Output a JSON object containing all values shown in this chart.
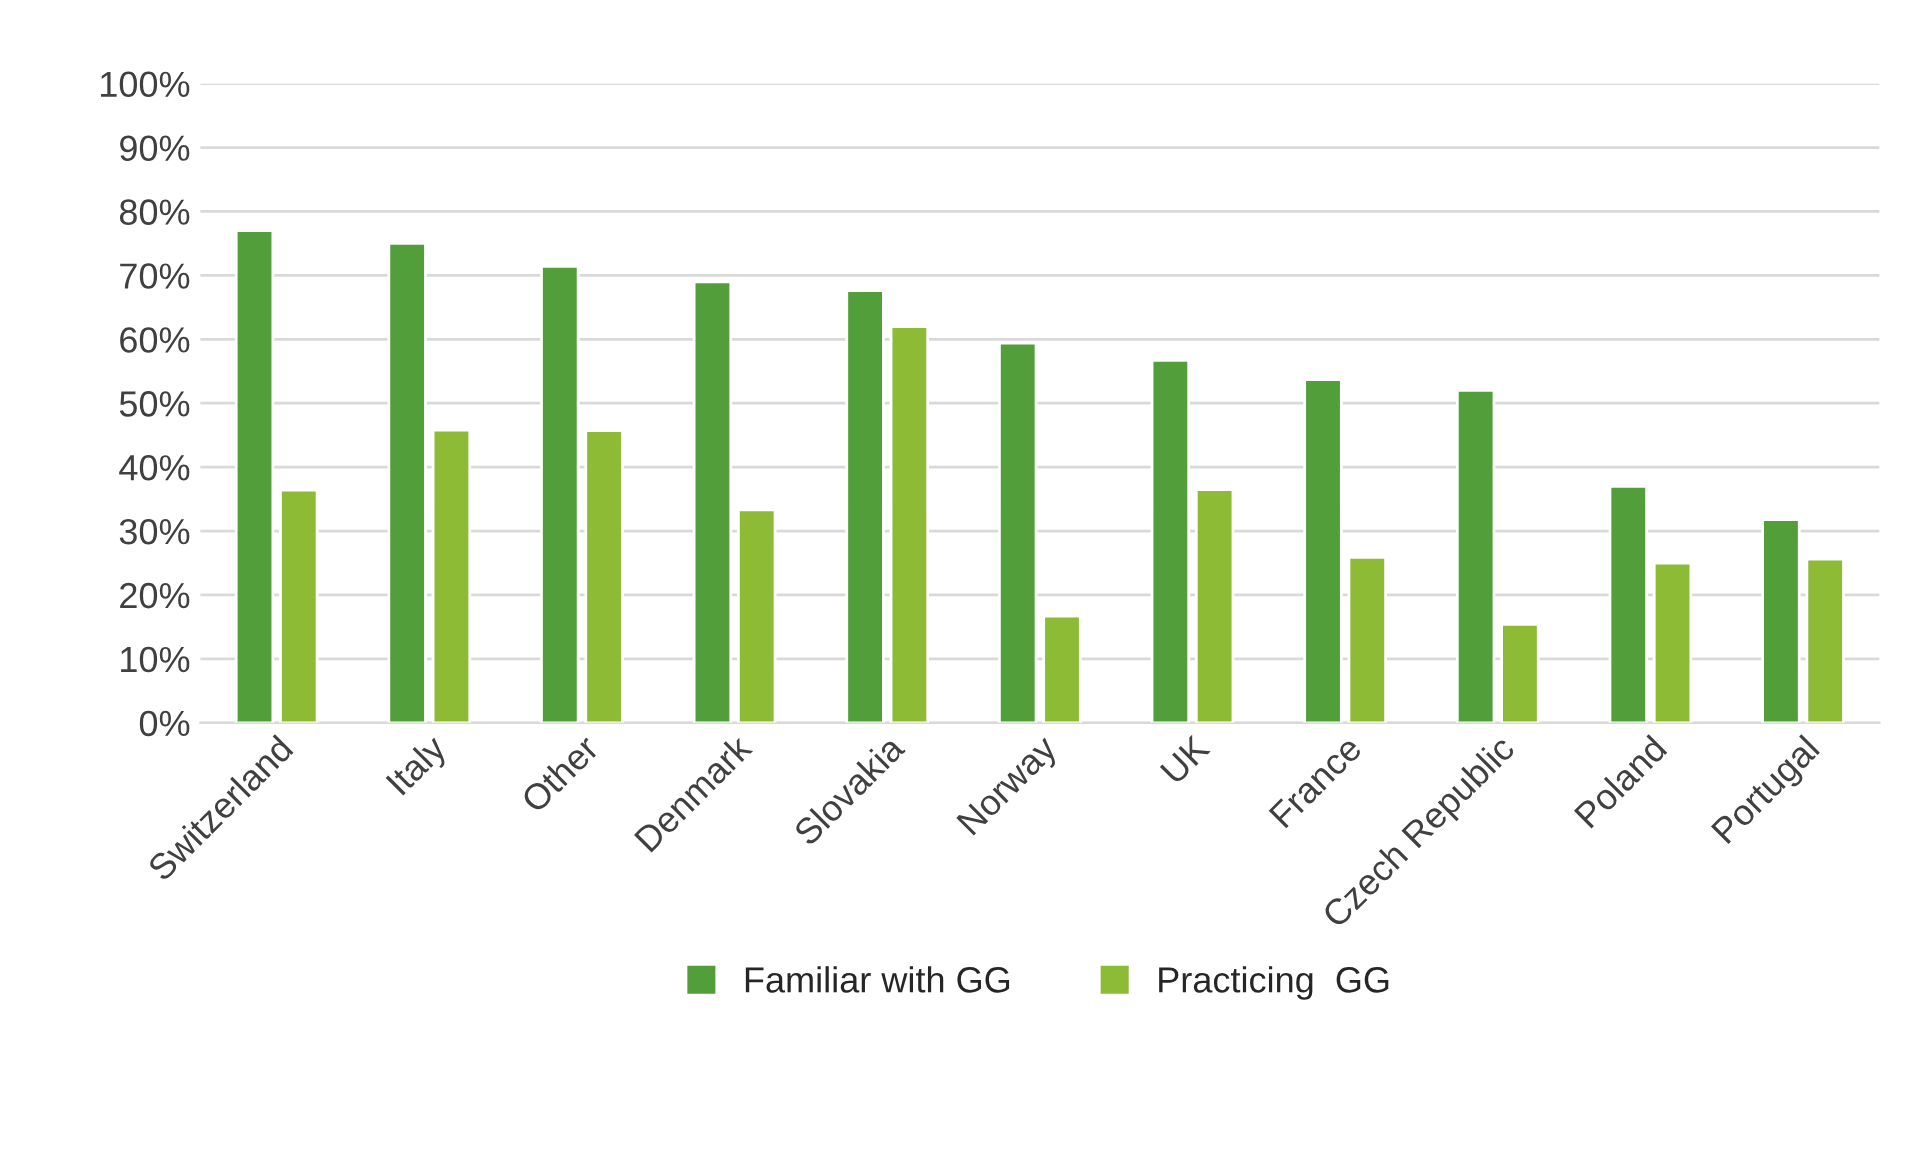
{
  "chart_data": {
    "type": "bar",
    "categories": [
      "Switzerland",
      "Italy",
      "Other",
      "Denmark",
      "Slovakia",
      "Norway",
      "UK",
      "France",
      "Czech Republic",
      "Poland",
      "Portugal"
    ],
    "series": [
      {
        "name": "Familiar with GG",
        "color": "#519e3a",
        "values": [
          77,
          75,
          71.4,
          69,
          67.6,
          59.4,
          56.7,
          53.7,
          52,
          37,
          31.8
        ]
      },
      {
        "name": "Practicing  GG",
        "color": "#8dbb35",
        "values": [
          36.4,
          45.8,
          45.7,
          33.3,
          62,
          16.7,
          36.5,
          25.9,
          15.4,
          25,
          25.6
        ]
      }
    ],
    "ylim": [
      0,
      100
    ],
    "yticks": [
      {
        "value": 0,
        "label": "0%"
      },
      {
        "value": 10,
        "label": "10%"
      },
      {
        "value": 20,
        "label": "20%"
      },
      {
        "value": 30,
        "label": "30%"
      },
      {
        "value": 40,
        "label": "40%"
      },
      {
        "value": 50,
        "label": "50%"
      },
      {
        "value": 60,
        "label": "60%"
      },
      {
        "value": 70,
        "label": "70%"
      },
      {
        "value": 80,
        "label": "80%"
      },
      {
        "value": 90,
        "label": "90%"
      },
      {
        "value": 100,
        "label": "100%"
      }
    ],
    "grid": "y",
    "legend": "bottom"
  }
}
